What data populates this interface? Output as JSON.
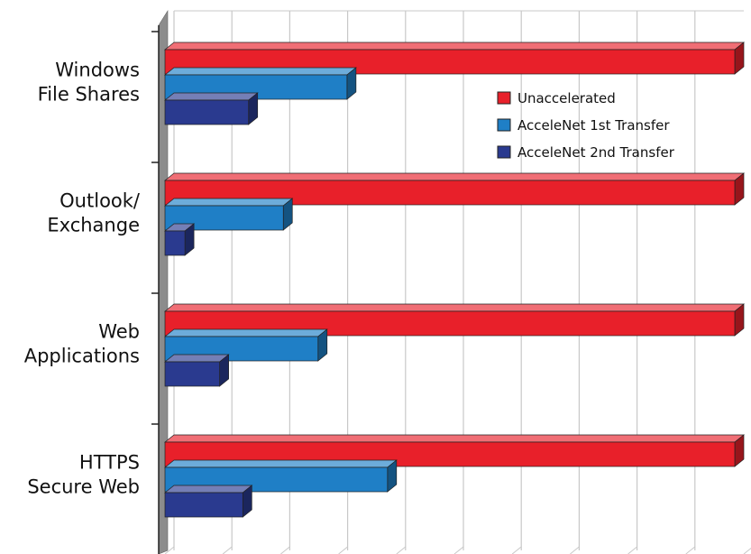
{
  "chart_data": {
    "type": "bar",
    "orientation": "horizontal",
    "style": "3d",
    "categories": [
      [
        "Windows",
        "File Shares"
      ],
      [
        "Outlook/",
        "Exchange"
      ],
      [
        "Web",
        "Applications"
      ],
      [
        "HTTPS",
        "Secure Web"
      ]
    ],
    "series": [
      {
        "name": "Unaccelerated",
        "color": "#e8202a",
        "values": [
          100,
          100,
          100,
          100
        ]
      },
      {
        "name": "AcceleNet 1st Transfer",
        "color": "#1f7fc6",
        "values": [
          33,
          22,
          28,
          40
        ]
      },
      {
        "name": "AcceleNet 2nd Transfer",
        "color": "#2a3a8f",
        "values": [
          16,
          5,
          11,
          15
        ]
      }
    ],
    "xlim": [
      0,
      100
    ],
    "grid": true,
    "legend": "top-right"
  }
}
